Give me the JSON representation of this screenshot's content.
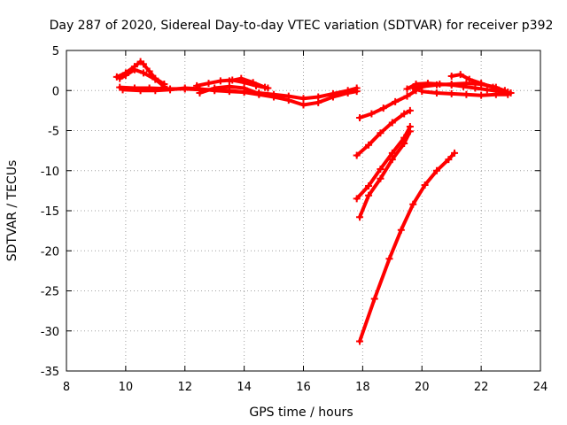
{
  "chart_data": {
    "type": "scatter",
    "title": "Day 287 of 2020, Sidereal Day-to-day VTEC variation (SDTVAR) for receiver p392",
    "xlabel": "GPS time / hours",
    "ylabel": "SDTVAR / TECUs",
    "xlim": [
      8,
      24
    ],
    "ylim": [
      -35,
      5
    ],
    "xticks": [
      8,
      10,
      12,
      14,
      16,
      18,
      20,
      22,
      24
    ],
    "yticks": [
      5,
      0,
      -5,
      -10,
      -15,
      -20,
      -25,
      -30,
      -35
    ],
    "grid": true,
    "color": "#ff0000",
    "series": [
      {
        "x": [
          9.7,
          10.0,
          10.3,
          10.5,
          10.6,
          10.8,
          11.0,
          11.3
        ],
        "y": [
          1.7,
          2.2,
          3.0,
          3.6,
          3.3,
          2.4,
          1.5,
          0.8
        ]
      },
      {
        "x": [
          9.8,
          10.0,
          10.3,
          10.6,
          11.0,
          11.3
        ],
        "y": [
          1.5,
          1.9,
          2.6,
          2.2,
          1.4,
          0.5
        ]
      },
      {
        "x": [
          9.8,
          10.3,
          10.8,
          11.5,
          12.0,
          12.5,
          13.0,
          13.5,
          14.0,
          14.5,
          15.0,
          15.5,
          16.0,
          16.5,
          17.0,
          17.5,
          17.8
        ],
        "y": [
          0.4,
          0.3,
          0.3,
          0.2,
          0.2,
          0.1,
          0.1,
          0.0,
          -0.2,
          -0.3,
          -0.5,
          -0.7,
          -1.0,
          -0.8,
          -0.4,
          0.0,
          0.3
        ]
      },
      {
        "x": [
          9.9,
          10.5,
          11.0,
          11.5,
          12.0,
          12.5,
          13.0,
          13.5,
          14.0,
          14.5,
          15.0,
          15.5,
          16.0,
          16.5,
          17.0,
          17.5,
          17.8
        ],
        "y": [
          0.1,
          0.0,
          0.0,
          0.1,
          0.3,
          0.2,
          0.0,
          -0.1,
          -0.2,
          -0.5,
          -0.8,
          -1.2,
          -1.8,
          -1.5,
          -0.8,
          -0.3,
          -0.1
        ]
      },
      {
        "x": [
          12.4,
          12.8,
          13.2,
          13.6,
          14.0,
          14.4,
          14.8
        ],
        "y": [
          0.6,
          0.9,
          1.2,
          1.3,
          1.0,
          0.6,
          0.3
        ]
      },
      {
        "x": [
          13.5,
          13.9,
          14.3,
          14.7
        ],
        "y": [
          1.2,
          1.5,
          1.0,
          0.4
        ]
      },
      {
        "x": [
          12.5,
          13.0,
          13.5,
          14.0,
          14.5,
          15.0
        ],
        "y": [
          -0.3,
          0.3,
          0.5,
          0.3,
          -0.4,
          -0.7
        ]
      },
      {
        "x": [
          17.9,
          18.3,
          18.7,
          19.1,
          19.5,
          19.8,
          20.0
        ],
        "y": [
          -3.4,
          -2.9,
          -2.2,
          -1.4,
          -0.7,
          0.0,
          0.4
        ]
      },
      {
        "x": [
          19.5,
          19.8,
          20.2,
          20.6,
          21.0,
          21.4,
          21.8,
          22.2,
          22.6,
          23.0
        ],
        "y": [
          0.2,
          0.8,
          0.9,
          0.8,
          0.7,
          0.5,
          0.3,
          0.1,
          -0.1,
          -0.3
        ]
      },
      {
        "x": [
          19.7,
          20.0,
          20.5,
          21.0,
          21.5,
          22.0,
          22.5,
          22.9
        ],
        "y": [
          0.3,
          0.5,
          0.7,
          0.8,
          0.9,
          0.8,
          0.4,
          -0.2
        ]
      },
      {
        "x": [
          20.0,
          20.5,
          21.0,
          21.5,
          22.0,
          22.5,
          22.9
        ],
        "y": [
          -0.1,
          -0.3,
          -0.4,
          -0.5,
          -0.6,
          -0.5,
          -0.5
        ]
      },
      {
        "x": [
          21.0,
          21.3,
          21.6,
          22.0,
          22.4,
          22.8
        ],
        "y": [
          1.8,
          2.0,
          1.4,
          0.9,
          0.4,
          0.0
        ]
      },
      {
        "x": [
          17.8,
          18.2,
          18.6,
          19.0,
          19.4,
          19.6
        ],
        "y": [
          -8.1,
          -6.8,
          -5.3,
          -4.0,
          -2.9,
          -2.5
        ]
      },
      {
        "x": [
          17.8,
          18.2,
          18.6,
          19.0,
          19.4,
          19.6
        ],
        "y": [
          -13.5,
          -11.9,
          -9.8,
          -7.8,
          -5.9,
          -4.5
        ]
      },
      {
        "x": [
          17.9,
          18.2,
          18.6,
          19.0,
          19.4,
          19.6
        ],
        "y": [
          -15.8,
          -13.1,
          -11.0,
          -8.6,
          -6.6,
          -5.1
        ]
      },
      {
        "x": [
          17.9,
          18.4,
          18.9,
          19.3,
          19.7,
          20.1,
          20.5,
          20.9,
          21.1
        ],
        "y": [
          -31.3,
          -26.0,
          -21.0,
          -17.4,
          -14.2,
          -11.8,
          -10.0,
          -8.6,
          -7.8
        ]
      }
    ]
  }
}
